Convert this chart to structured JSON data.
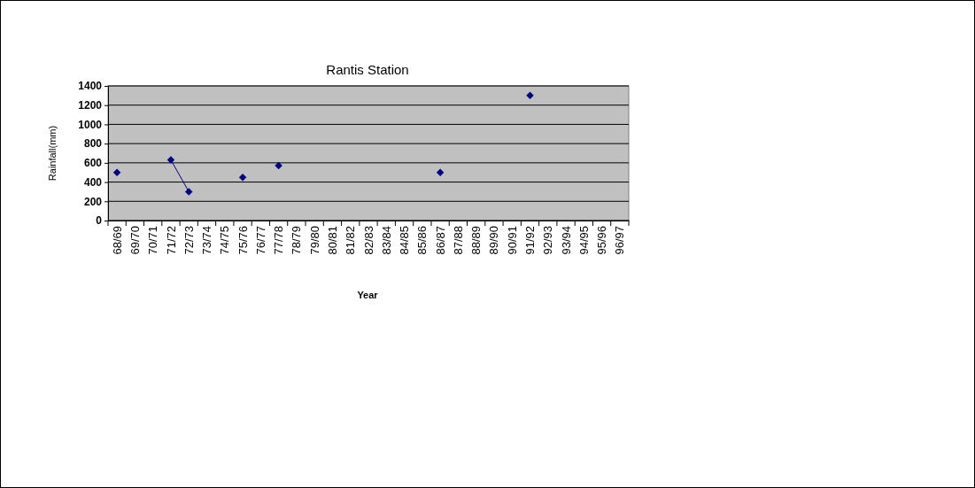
{
  "chart_data": {
    "type": "line",
    "title": "Rantis Station",
    "xlabel": "Year",
    "ylabel": "Rainfall(mm)",
    "categories": [
      "68/69",
      "69/70",
      "70/71",
      "71/72",
      "72/73",
      "73/74",
      "74/75",
      "75/76",
      "76/77",
      "77/78",
      "78/79",
      "79/80",
      "80/81",
      "81/82",
      "82/83",
      "83/84",
      "84/85",
      "85/86",
      "86/87",
      "87/88",
      "88/89",
      "89/90",
      "90/91",
      "91/92",
      "92/93",
      "93/94",
      "94/95",
      "95/96",
      "96/97"
    ],
    "series": [
      {
        "color": "#000080",
        "values": [
          500,
          null,
          null,
          630,
          300,
          null,
          null,
          450,
          null,
          570,
          null,
          null,
          null,
          null,
          null,
          null,
          null,
          null,
          500,
          null,
          null,
          null,
          null,
          1300,
          null,
          null,
          null,
          null,
          null
        ]
      }
    ],
    "ylim": [
      0,
      1400
    ],
    "yticks": [
      0,
      200,
      400,
      600,
      800,
      1000,
      1200,
      1400
    ],
    "grid": "y",
    "marker": "diamond",
    "line_style": "solid"
  }
}
